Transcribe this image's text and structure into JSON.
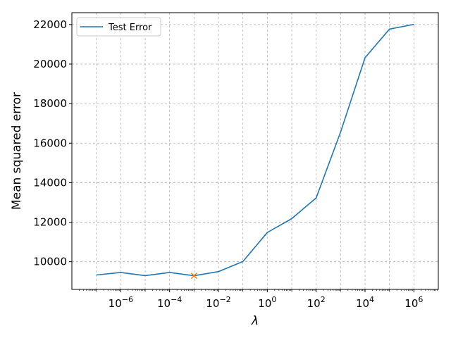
{
  "chart_data": {
    "type": "line",
    "xscale": "log",
    "xlabel": "λ",
    "ylabel": "Mean squared error",
    "xlim": [
      1e-08,
      10000000.0
    ],
    "ylim": [
      8600,
      22600
    ],
    "grid": true,
    "legend_position": "top-left",
    "x_ticks": [
      {
        "value": 1e-06,
        "base": "10",
        "exp": "−6"
      },
      {
        "value": 0.0001,
        "base": "10",
        "exp": "−4"
      },
      {
        "value": 0.01,
        "base": "10",
        "exp": "−2"
      },
      {
        "value": 1,
        "base": "10",
        "exp": "0"
      },
      {
        "value": 100,
        "base": "10",
        "exp": "2"
      },
      {
        "value": 10000,
        "base": "10",
        "exp": "4"
      },
      {
        "value": 1000000,
        "base": "10",
        "exp": "6"
      }
    ],
    "y_ticks": [
      {
        "value": 10000,
        "label": "10000"
      },
      {
        "value": 12000,
        "label": "12000"
      },
      {
        "value": 14000,
        "label": "14000"
      },
      {
        "value": 16000,
        "label": "16000"
      },
      {
        "value": 18000,
        "label": "18000"
      },
      {
        "value": 20000,
        "label": "20000"
      },
      {
        "value": 22000,
        "label": "22000"
      }
    ],
    "series": [
      {
        "name": "Test Error",
        "color": "#1f77b4",
        "x": [
          1e-07,
          1e-06,
          1e-05,
          0.0001,
          0.001,
          0.01,
          0.1,
          1,
          10,
          100,
          1000,
          10000,
          100000,
          1000000
        ],
        "y": [
          9330,
          9460,
          9300,
          9460,
          9290,
          9500,
          10010,
          11480,
          12180,
          13230,
          16560,
          20320,
          21770,
          22010
        ]
      }
    ],
    "annotations": [
      {
        "type": "marker",
        "shape": "x",
        "color": "#ff7f0e",
        "x": 0.001,
        "y": 9290
      }
    ]
  }
}
